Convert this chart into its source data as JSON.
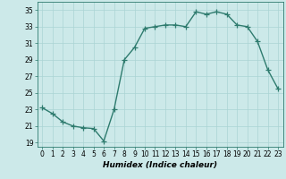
{
  "x": [
    0,
    1,
    2,
    3,
    4,
    5,
    6,
    7,
    8,
    9,
    10,
    11,
    12,
    13,
    14,
    15,
    16,
    17,
    18,
    19,
    20,
    21,
    22,
    23
  ],
  "y": [
    23.2,
    22.5,
    21.5,
    21.0,
    20.8,
    20.7,
    19.2,
    23.0,
    29.0,
    30.5,
    32.8,
    33.0,
    33.2,
    33.2,
    33.0,
    34.8,
    34.5,
    34.8,
    34.5,
    33.2,
    33.0,
    31.2,
    27.8,
    25.5
  ],
  "line_color": "#2e7b6e",
  "marker": "+",
  "markersize": 4,
  "linewidth": 1.0,
  "bg_color": "#cce9e9",
  "grid_color": "#aad4d4",
  "xlabel": "Humidex (Indice chaleur)",
  "xlim": [
    -0.5,
    23.5
  ],
  "ylim": [
    18.5,
    36.0
  ],
  "yticks": [
    19,
    21,
    23,
    25,
    27,
    29,
    31,
    33,
    35
  ],
  "xtick_labels": [
    "0",
    "1",
    "2",
    "3",
    "4",
    "5",
    "6",
    "7",
    "8",
    "9",
    "10",
    "11",
    "12",
    "13",
    "14",
    "15",
    "16",
    "17",
    "18",
    "19",
    "20",
    "21",
    "22",
    "23"
  ],
  "tick_fontsize": 5.5,
  "xlabel_fontsize": 6.5
}
